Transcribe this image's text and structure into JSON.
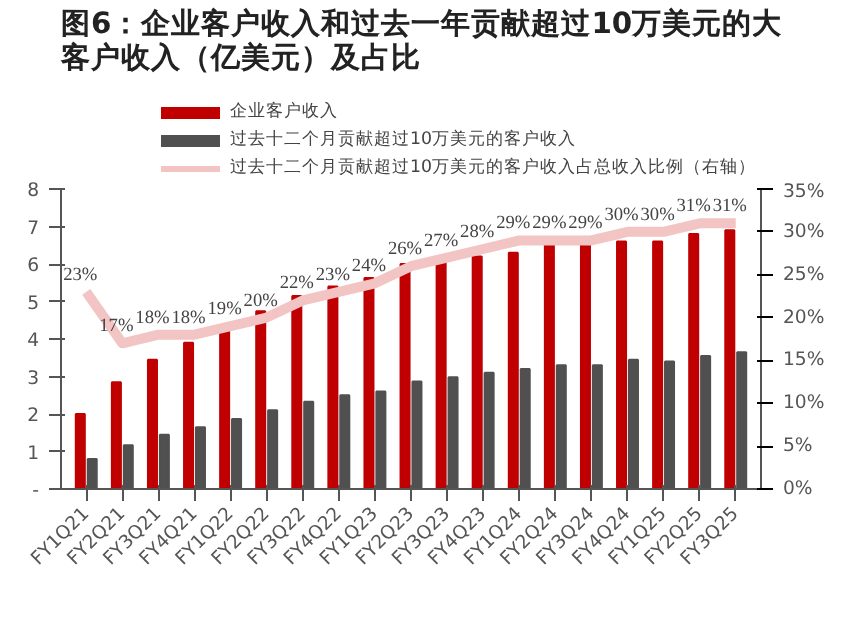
{
  "chart_data": {
    "type": "bar",
    "title": "图6：企业客户收入和过去一年贡献超过10万美元的大客户收入（亿美元）及占比",
    "categories": [
      "FY1Q21",
      "FY2Q21",
      "FY3Q21",
      "FY4Q21",
      "FY1Q22",
      "FY2Q22",
      "FY3Q22",
      "FY4Q22",
      "FY1Q23",
      "FY2Q23",
      "FY3Q23",
      "FY4Q23",
      "FY1Q24",
      "FY2Q24",
      "FY3Q24",
      "FY4Q24",
      "FY1Q25",
      "FY2Q25",
      "FY3Q25"
    ],
    "series": [
      {
        "name": "企业客户收入",
        "color": "#c00000",
        "values": [
          2.0,
          2.85,
          3.45,
          3.9,
          4.26,
          4.74,
          5.15,
          5.4,
          5.63,
          6.0,
          6.05,
          6.2,
          6.3,
          6.5,
          6.5,
          6.6,
          6.6,
          6.8,
          6.9
        ]
      },
      {
        "name": "过去十二个月贡献超过10万美元的客户收入",
        "color": "#505050",
        "values": [
          0.8,
          1.17,
          1.45,
          1.65,
          1.87,
          2.1,
          2.33,
          2.5,
          2.6,
          2.87,
          2.98,
          3.1,
          3.2,
          3.3,
          3.3,
          3.45,
          3.4,
          3.55,
          3.65
        ]
      },
      {
        "name": "过去十二个月贡献超过10万美元的客户收入占总收入比例（右轴）",
        "type": "line",
        "axis": "y2",
        "color": "#f2c4c4",
        "values": [
          23,
          17,
          18,
          18,
          19,
          20,
          22,
          23,
          24,
          26,
          27,
          28,
          29,
          29,
          29,
          30,
          30,
          31,
          31
        ],
        "value_labels": [
          "23%",
          "17%",
          "18%",
          "18%",
          "19%",
          "20%",
          "22%",
          "23%",
          "24%",
          "26%",
          "27%",
          "28%",
          "29%",
          "29%",
          "29%",
          "30%",
          "30%",
          "31%",
          "31%"
        ]
      }
    ],
    "ylim": [
      0,
      8
    ],
    "yticks": [
      {
        "value": 0,
        "label": "-"
      },
      1,
      2,
      3,
      4,
      5,
      6,
      7,
      8
    ],
    "y2lim": [
      0,
      35
    ],
    "y2ticks": [
      {
        "value": 0,
        "label": "0%"
      },
      {
        "value": 5,
        "label": "5%"
      },
      {
        "value": 10,
        "label": "10%"
      },
      {
        "value": 15,
        "label": "15%"
      },
      {
        "value": 20,
        "label": "20%"
      },
      {
        "value": 25,
        "label": "25%"
      },
      {
        "value": 30,
        "label": "30%"
      },
      {
        "value": 35,
        "label": "35%"
      }
    ],
    "legend": "top",
    "grid": false
  }
}
